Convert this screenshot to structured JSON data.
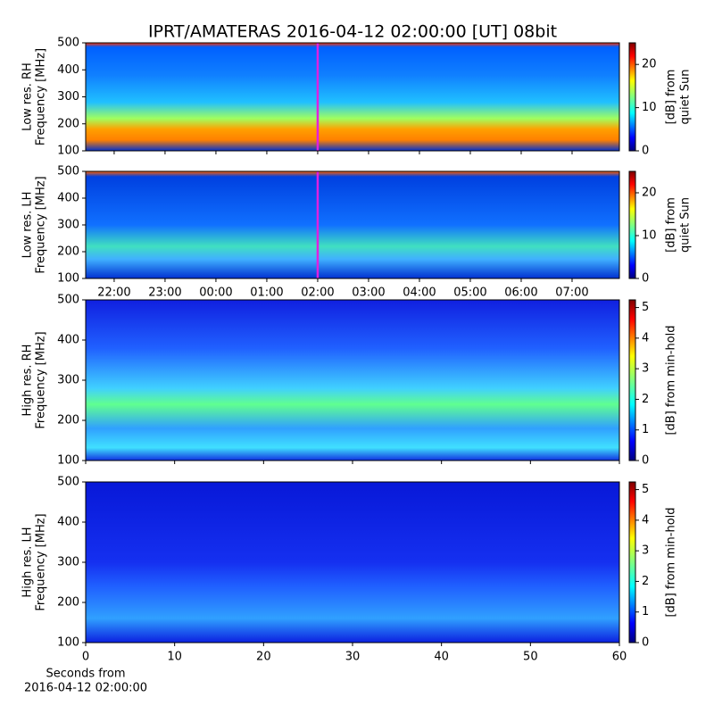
{
  "chart_data": [
    {
      "type": "spectrogram",
      "title": "IPRT/AMATERAS 2016-04-12 02:00:00 [UT]   08bit",
      "ylabel": [
        "Low res. RH",
        "Frequency [MHz]"
      ],
      "ylim": [
        100,
        500
      ],
      "yticks": [
        100,
        200,
        300,
        400,
        500
      ],
      "xlim": [
        21.44,
        31.93
      ],
      "xticks": [
        {
          "value": 22,
          "label": "22:00"
        },
        {
          "value": 23,
          "label": "23:00"
        },
        {
          "value": 24,
          "label": "00:00"
        },
        {
          "value": 25,
          "label": "01:00"
        },
        {
          "value": 26,
          "label": "02:00"
        },
        {
          "value": 27,
          "label": "03:00"
        },
        {
          "value": 28,
          "label": "04:00"
        },
        {
          "value": 29,
          "label": "05:00"
        },
        {
          "value": 30,
          "label": "06:00"
        },
        {
          "value": 31,
          "label": "07:00"
        }
      ],
      "show_xtick_labels": false,
      "marker_x": 26,
      "marker_color": "#e020e0",
      "colorbar_label": [
        "[dB] from",
        "quiet Sun"
      ],
      "clim": [
        0,
        25
      ],
      "cticks": [
        0,
        10,
        20
      ]
    },
    {
      "type": "spectrogram",
      "ylabel": [
        "Low res. LH",
        "Frequency [MHz]"
      ],
      "ylim": [
        100,
        500
      ],
      "yticks": [
        100,
        200,
        300,
        400,
        500
      ],
      "xlim": [
        21.44,
        31.93
      ],
      "xticks": [
        {
          "value": 22,
          "label": "22:00"
        },
        {
          "value": 23,
          "label": "23:00"
        },
        {
          "value": 24,
          "label": "00:00"
        },
        {
          "value": 25,
          "label": "01:00"
        },
        {
          "value": 26,
          "label": "02:00"
        },
        {
          "value": 27,
          "label": "03:00"
        },
        {
          "value": 28,
          "label": "04:00"
        },
        {
          "value": 29,
          "label": "05:00"
        },
        {
          "value": 30,
          "label": "06:00"
        },
        {
          "value": 31,
          "label": "07:00"
        }
      ],
      "show_xtick_labels": true,
      "marker_x": 26,
      "marker_color": "#e020e0",
      "colorbar_label": [
        "[dB] from",
        "quiet Sun"
      ],
      "clim": [
        0,
        25
      ],
      "cticks": [
        0,
        10,
        20
      ]
    },
    {
      "type": "spectrogram",
      "ylabel": [
        "High res. RH",
        "Frequency [MHz]"
      ],
      "ylim": [
        100,
        500
      ],
      "yticks": [
        100,
        200,
        300,
        400,
        500
      ],
      "xlim": [
        0,
        60
      ],
      "xticks": [
        0,
        10,
        20,
        30,
        40,
        50,
        60
      ],
      "show_xtick_labels": false,
      "colorbar_label": [
        "[dB] from min-hold"
      ],
      "clim": [
        0,
        5.25
      ],
      "cticks": [
        0,
        1,
        2,
        3,
        4,
        5
      ]
    },
    {
      "type": "spectrogram",
      "ylabel": [
        "High res. LH",
        "Frequency [MHz]"
      ],
      "ylim": [
        100,
        500
      ],
      "yticks": [
        100,
        200,
        300,
        400,
        500
      ],
      "xlim": [
        0,
        60
      ],
      "xticks": [
        0,
        10,
        20,
        30,
        40,
        50,
        60
      ],
      "show_xtick_labels": true,
      "xlabel": [
        "Seconds from",
        "2016-04-12 02:00:00"
      ],
      "colorbar_label": [
        "[dB] from min-hold"
      ],
      "clim": [
        0,
        5.25
      ],
      "cticks": [
        0,
        1,
        2,
        3,
        4,
        5
      ]
    }
  ]
}
